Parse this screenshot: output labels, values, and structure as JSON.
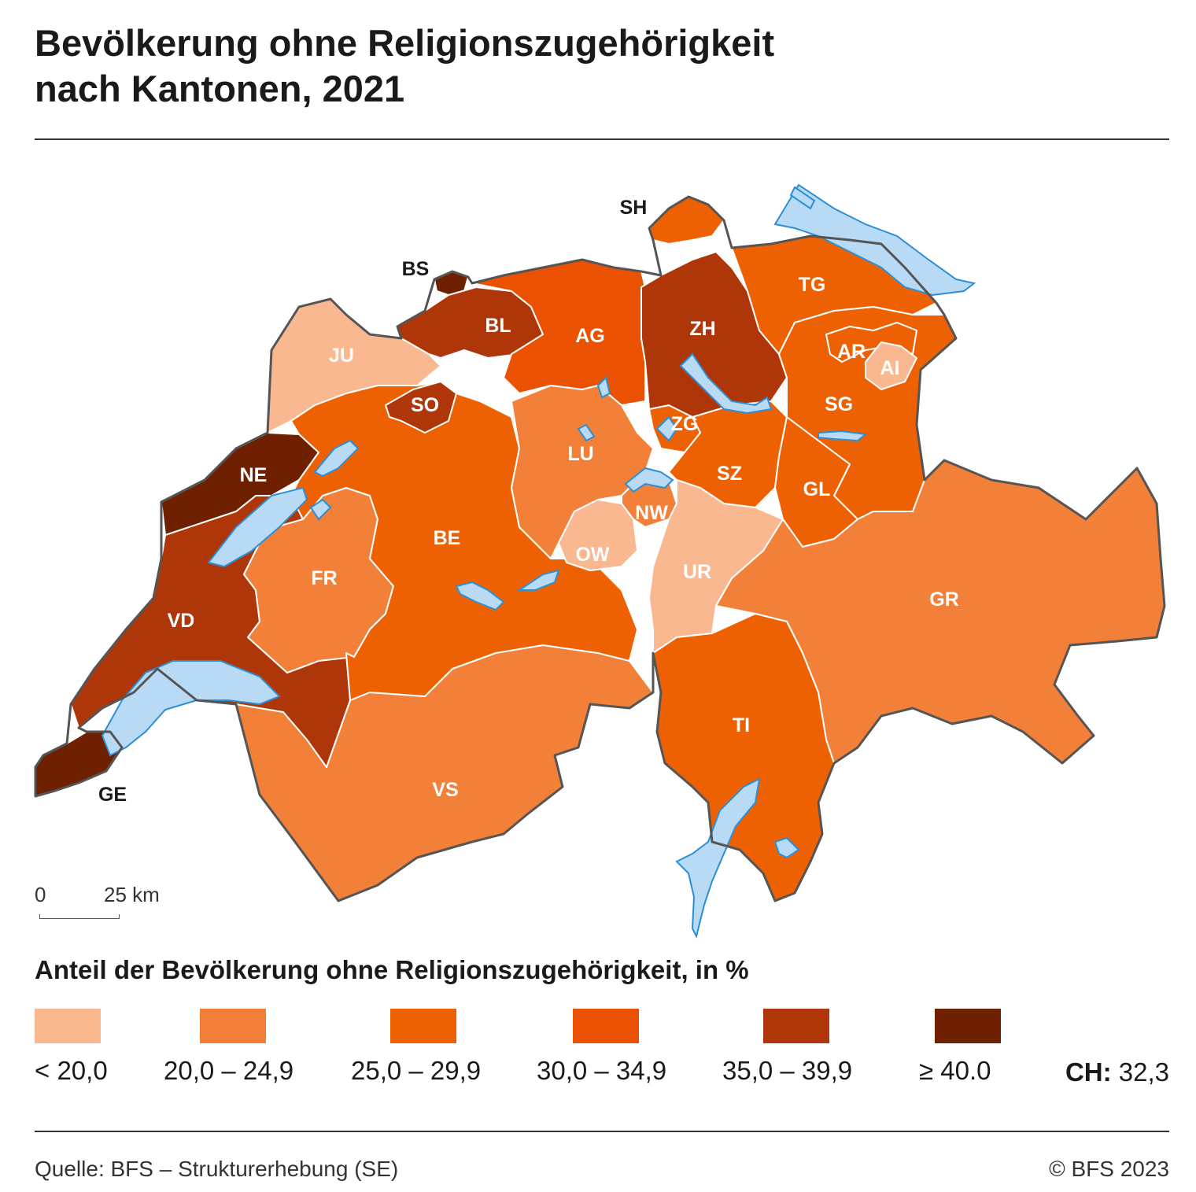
{
  "title": {
    "line1": "Bevölkerung ohne Religionszugehörigkeit",
    "line2": "nach Kantonen, 2021"
  },
  "legend": {
    "title": "Anteil der Bevölkerung ohne Religionszugehörigkeit, in %",
    "classes": [
      {
        "label": "< 20,0",
        "color": "#f9b890"
      },
      {
        "label": "20,0 – 24,9",
        "color": "#f28039"
      },
      {
        "label": "25,0 – 29,9",
        "color": "#ee6102"
      },
      {
        "label": "30,0 – 34,9",
        "color": "#ea5102"
      },
      {
        "label": "35,0 – 39,9",
        "color": "#ae3608"
      },
      {
        "label": "≥ 40.0",
        "color": "#6e2000"
      }
    ],
    "national_label": "CH:",
    "national_value": "32,3"
  },
  "scale": {
    "start": "0",
    "end": "25 km"
  },
  "colors": {
    "lake": "#b8daf5",
    "lake_edge": "#2b8fd6",
    "border": "#555555",
    "inner_border": "#ffffff"
  },
  "cantons": [
    {
      "code": "GE",
      "class": 5
    },
    {
      "code": "VD",
      "class": 4
    },
    {
      "code": "NE",
      "class": 5
    },
    {
      "code": "JU",
      "class": 0
    },
    {
      "code": "FR",
      "class": 1
    },
    {
      "code": "BE",
      "class": 2
    },
    {
      "code": "SO",
      "class": 4
    },
    {
      "code": "BS",
      "class": 5
    },
    {
      "code": "BL",
      "class": 4
    },
    {
      "code": "AG",
      "class": 3
    },
    {
      "code": "LU",
      "class": 1
    },
    {
      "code": "OW",
      "class": 0
    },
    {
      "code": "NW",
      "class": 1
    },
    {
      "code": "UR",
      "class": 0
    },
    {
      "code": "ZG",
      "class": 2
    },
    {
      "code": "SZ",
      "class": 2
    },
    {
      "code": "ZH",
      "class": 4
    },
    {
      "code": "SH",
      "class": 2
    },
    {
      "code": "TG",
      "class": 2
    },
    {
      "code": "AR",
      "class": 2
    },
    {
      "code": "AI",
      "class": 0
    },
    {
      "code": "SG",
      "class": 2
    },
    {
      "code": "GL",
      "class": 2
    },
    {
      "code": "GR",
      "class": 1
    },
    {
      "code": "TI",
      "class": 2
    },
    {
      "code": "VS",
      "class": 1
    }
  ],
  "footer": {
    "source": "Quelle: BFS – Strukturerhebung (SE)",
    "copyright": "© BFS 2023"
  }
}
